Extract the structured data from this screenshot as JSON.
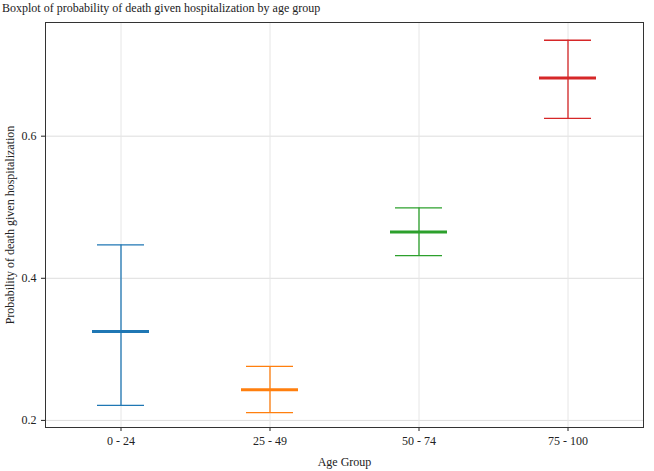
{
  "chart_data": {
    "type": "boxplot",
    "title": "Boxplot of probability of death given hospitalization by age group",
    "x_label": "Age Group",
    "y_label": "Probability of death given hospitalization",
    "categories": [
      "0 - 24",
      "25 - 49",
      "50 - 74",
      "75 - 100"
    ],
    "values": [
      0.325,
      0.243,
      0.465,
      0.682
    ],
    "lower": [
      0.221,
      0.211,
      0.432,
      0.625
    ],
    "upper": [
      0.447,
      0.276,
      0.499,
      0.735
    ],
    "colors": [
      "#1f77b4",
      "#ff7f0e",
      "#2ca02c",
      "#d62728"
    ],
    "ylim": [
      0.19,
      0.76
    ],
    "yticks": [
      0.2,
      0.4,
      0.6
    ],
    "grid": true
  }
}
